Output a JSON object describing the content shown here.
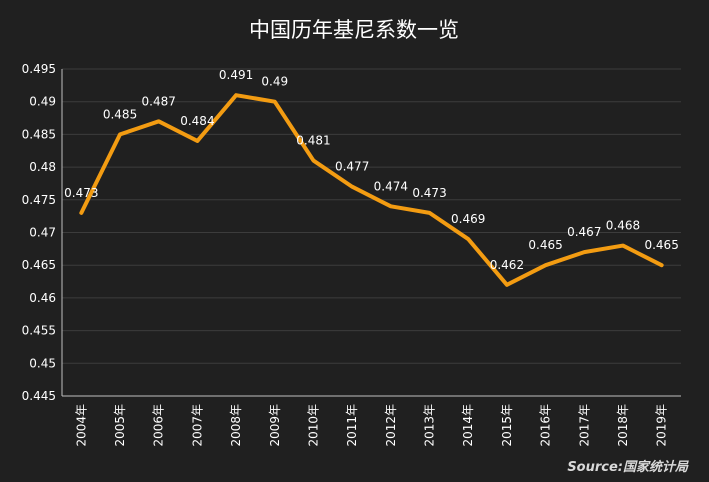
{
  "chart_data": {
    "type": "line",
    "title": "中国历年基尼系数一览",
    "categories": [
      "2004年",
      "2005年",
      "2006年",
      "2007年",
      "2008年",
      "2009年",
      "2010年",
      "2011年",
      "2012年",
      "2013年",
      "2014年",
      "2015年",
      "2016年",
      "2017年",
      "2018年",
      "2019年"
    ],
    "series": [
      {
        "values": [
          0.473,
          0.485,
          0.487,
          0.484,
          0.491,
          0.49,
          0.481,
          0.477,
          0.474,
          0.473,
          0.469,
          0.462,
          0.465,
          0.467,
          0.468,
          0.465
        ],
        "labels": [
          "0.473",
          "0.485",
          "0.487",
          "0.484",
          "0.491",
          "0.49",
          "0.481",
          "0.477",
          "0.474",
          "0.473",
          "0.469",
          "0.462",
          "0.465",
          "0.467",
          "0.468",
          "0.465"
        ]
      }
    ],
    "yticks": [
      "0.445",
      "0.45",
      "0.455",
      "0.46",
      "0.465",
      "0.47",
      "0.475",
      "0.48",
      "0.485",
      "0.49",
      "0.495"
    ],
    "ylim": [
      0.445,
      0.495
    ],
    "grid": true,
    "line_color": "#f39c12",
    "background_color": "#202020",
    "source": "Source:国家统计局"
  }
}
